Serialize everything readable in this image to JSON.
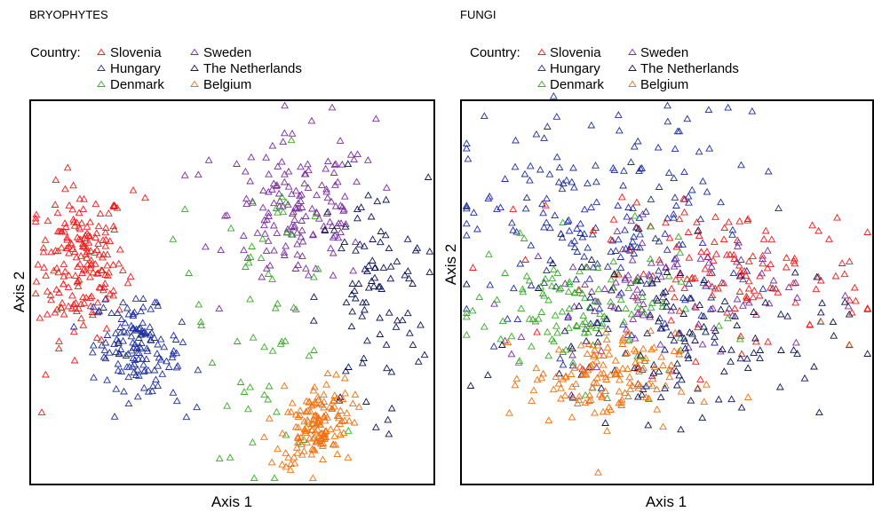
{
  "legend": {
    "label": "Country:",
    "countries": [
      {
        "name": "Slovenia",
        "color": "#ee1c1c"
      },
      {
        "name": "Sweden",
        "color": "#7a2da0"
      },
      {
        "name": "Hungary",
        "color": "#1f2f9e"
      },
      {
        "name": "The Netherlands",
        "color": "#0d1458"
      },
      {
        "name": "Denmark",
        "color": "#3aaa2a"
      },
      {
        "name": "Belgium",
        "color": "#f07010"
      }
    ]
  },
  "marker": "open-triangle",
  "chart_data": [
    {
      "type": "scatter",
      "title": "BRYOPHYTES",
      "xlabel": "Axis 1",
      "ylabel": "Axis 2",
      "xlim": [
        0,
        100
      ],
      "ylim": [
        0,
        100
      ],
      "ticks": "none",
      "legend_placement": "above plot",
      "series": [
        {
          "name": "Slovenia",
          "n_points": 190,
          "cx": 12,
          "cy": 58,
          "sx": 5.5,
          "sy": 10,
          "rho": 0,
          "approx": true,
          "extra": [
            [
              2,
              18
            ],
            [
              3,
              28
            ],
            [
              25,
              77
            ],
            [
              28,
              75
            ],
            [
              6,
              71
            ],
            [
              13,
              65
            ],
            [
              20,
              49
            ]
          ]
        },
        {
          "name": "Hungary",
          "n_points": 140,
          "cx": 26,
          "cy": 35,
          "sx": 5.5,
          "sy": 6,
          "rho": -0.25,
          "approx": true,
          "extra": [
            [
              15,
              46
            ],
            [
              18,
              48
            ],
            [
              34,
              30
            ],
            [
              36,
              21
            ]
          ]
        },
        {
          "name": "Sweden",
          "n_points": 150,
          "cx": 67,
          "cy": 71,
          "sx": 9,
          "sy": 10,
          "rho": 0,
          "approx": true,
          "extra": [
            [
              38,
              81
            ],
            [
              44,
              85
            ],
            [
              75,
              99
            ],
            [
              86,
              96
            ],
            [
              84,
              85
            ],
            [
              51,
              84
            ]
          ]
        },
        {
          "name": "Denmark",
          "n_points": 55,
          "cx": 60,
          "cy": 45,
          "sx": 8,
          "sy": 19,
          "rho": 0,
          "approx": true,
          "extra": [
            [
              38,
              72
            ],
            [
              35,
              64
            ],
            [
              39,
              55
            ],
            [
              42,
              42
            ],
            [
              52,
              26
            ],
            [
              55,
              10
            ]
          ]
        },
        {
          "name": "The Netherlands",
          "n_points": 85,
          "cx": 85,
          "cy": 48,
          "sx": 7,
          "sy": 16,
          "rho": 0,
          "approx": true,
          "extra": [
            [
              96,
              61
            ],
            [
              94,
              64
            ],
            [
              89,
              16
            ],
            [
              86,
              14
            ],
            [
              77,
              22
            ]
          ]
        },
        {
          "name": "Belgium",
          "n_points": 145,
          "cx": 71,
          "cy": 15,
          "sx": 4.5,
          "sy": 5.5,
          "rho": 0.3,
          "approx": true,
          "extra": [
            [
              64,
              6
            ],
            [
              79,
              6
            ],
            [
              63,
              25
            ],
            [
              76,
              28
            ]
          ]
        }
      ]
    },
    {
      "type": "scatter",
      "title": "FUNGI",
      "xlabel": "Axis 1",
      "ylabel": "Axis 2",
      "xlim": [
        0,
        100
      ],
      "ylim": [
        0,
        100
      ],
      "ticks": "none",
      "legend_placement": "above plot",
      "series": [
        {
          "name": "Hungary",
          "n_points": 200,
          "cx": 35,
          "cy": 66,
          "sx": 18,
          "sy": 16,
          "rho": 0,
          "approx": true,
          "extra": [
            [
              22,
              102
            ],
            [
              38,
              97
            ],
            [
              71,
              98
            ],
            [
              52,
              88
            ],
            [
              55,
              96
            ],
            [
              8,
              72
            ],
            [
              10,
              80
            ]
          ]
        },
        {
          "name": "Slovenia",
          "n_points": 130,
          "cx": 66,
          "cy": 55,
          "sx": 17,
          "sy": 9,
          "rho": 0,
          "approx": true,
          "extra": [
            [
              90,
              64
            ],
            [
              88,
              53
            ],
            [
              12,
              72
            ],
            [
              20,
              73
            ]
          ]
        },
        {
          "name": "Sweden",
          "n_points": 100,
          "cx": 48,
          "cy": 49,
          "sx": 17,
          "sy": 9,
          "rho": 0,
          "approx": true,
          "extra": [
            [
              10,
              37
            ],
            [
              94,
              49
            ],
            [
              40,
              40
            ]
          ]
        },
        {
          "name": "Denmark",
          "n_points": 120,
          "cx": 30,
          "cy": 44,
          "sx": 14,
          "sy": 9,
          "rho": 0,
          "approx": true,
          "extra": [
            [
              2,
              45
            ],
            [
              6,
              60
            ],
            [
              10,
              55
            ],
            [
              65,
              43
            ]
          ]
        },
        {
          "name": "The Netherlands",
          "n_points": 130,
          "cx": 52,
          "cy": 38,
          "sx": 19,
          "sy": 11,
          "rho": 0,
          "approx": true,
          "extra": [
            [
              95,
              44
            ],
            [
              91,
              42
            ],
            [
              84,
              27
            ]
          ]
        },
        {
          "name": "Belgium",
          "n_points": 140,
          "cx": 34,
          "cy": 27,
          "sx": 9,
          "sy": 6,
          "rho": 0,
          "approx": true,
          "extra": [
            [
              33,
              2
            ],
            [
              70,
              22
            ],
            [
              95,
              36
            ],
            [
              88,
              42
            ]
          ]
        }
      ]
    }
  ]
}
